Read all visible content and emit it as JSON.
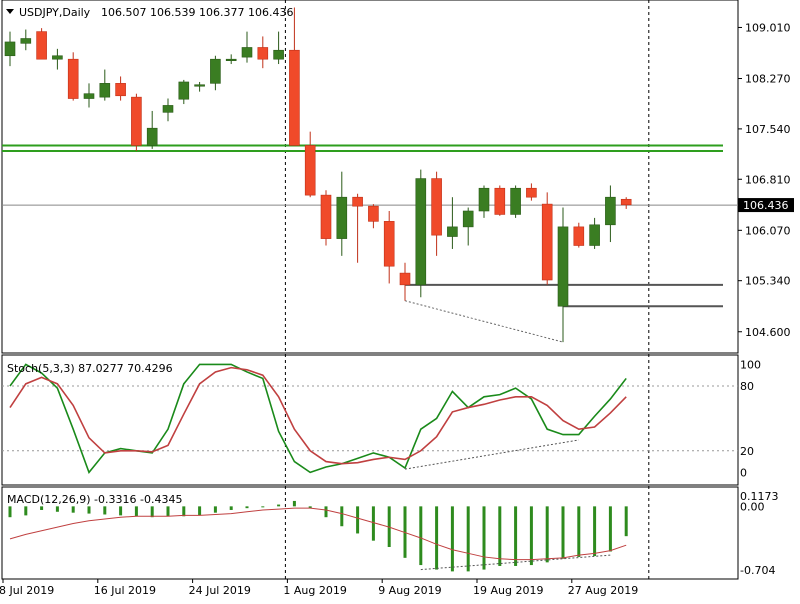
{
  "header": {
    "symbol": "USDJPY,Daily",
    "ohlc": "106.507 106.539 106.377 106.436",
    "menu_icon": "triangle-down-icon"
  },
  "colors": {
    "bull": "#3a7d22",
    "bear": "#f04a2a",
    "support": "#2e9e1e",
    "level": "#555555",
    "stoch_main": "#1a8a1a",
    "stoch_signal": "#c04040",
    "macd_hist": "#2e8b1e",
    "macd_signal": "#c04040"
  },
  "chart_data": [
    {
      "type": "candlestick",
      "title": "USDJPY,Daily",
      "price_axis_ticks": [
        "109.010",
        "108.270",
        "107.540",
        "106.810",
        "106.070",
        "105.340",
        "104.600"
      ],
      "current_price_label": "106.436",
      "current_price": 106.436,
      "ylim": [
        104.35,
        109.35
      ],
      "x_labels": [
        {
          "index": 0,
          "label": "8 Jul 2019"
        },
        {
          "index": 6,
          "label": "16 Jul 2019"
        },
        {
          "index": 12,
          "label": "24 Jul 2019"
        },
        {
          "index": 18,
          "label": "1 Aug 2019"
        },
        {
          "index": 24,
          "label": "9 Aug 2019"
        },
        {
          "index": 30,
          "label": "19 Aug 2019"
        },
        {
          "index": 36,
          "label": "27 Aug 2019"
        }
      ],
      "candles": [
        {
          "o": 108.6,
          "h": 108.95,
          "l": 108.45,
          "c": 108.8
        },
        {
          "o": 108.78,
          "h": 108.98,
          "l": 108.68,
          "c": 108.85
        },
        {
          "o": 108.95,
          "h": 109.0,
          "l": 108.55,
          "c": 108.55
        },
        {
          "o": 108.55,
          "h": 108.7,
          "l": 108.4,
          "c": 108.6
        },
        {
          "o": 108.55,
          "h": 108.65,
          "l": 107.95,
          "c": 107.98
        },
        {
          "o": 107.98,
          "h": 108.2,
          "l": 107.85,
          "c": 108.05
        },
        {
          "o": 108.0,
          "h": 108.4,
          "l": 107.95,
          "c": 108.2
        },
        {
          "o": 108.2,
          "h": 108.3,
          "l": 107.95,
          "c": 108.02
        },
        {
          "o": 108.0,
          "h": 108.05,
          "l": 107.22,
          "c": 107.3
        },
        {
          "o": 107.3,
          "h": 107.8,
          "l": 107.25,
          "c": 107.55
        },
        {
          "o": 107.78,
          "h": 107.98,
          "l": 107.65,
          "c": 107.88
        },
        {
          "o": 107.97,
          "h": 108.25,
          "l": 107.9,
          "c": 108.22
        },
        {
          "o": 108.18,
          "h": 108.22,
          "l": 108.08,
          "c": 108.18
        },
        {
          "o": 108.2,
          "h": 108.6,
          "l": 108.1,
          "c": 108.55
        },
        {
          "o": 108.55,
          "h": 108.62,
          "l": 108.48,
          "c": 108.55
        },
        {
          "o": 108.58,
          "h": 108.95,
          "l": 108.5,
          "c": 108.72
        },
        {
          "o": 108.72,
          "h": 108.88,
          "l": 108.42,
          "c": 108.55
        },
        {
          "o": 108.55,
          "h": 108.95,
          "l": 108.48,
          "c": 108.68
        },
        {
          "o": 108.68,
          "h": 109.3,
          "l": 107.3,
          "c": 107.3
        },
        {
          "o": 107.3,
          "h": 107.5,
          "l": 106.55,
          "c": 106.58
        },
        {
          "o": 106.58,
          "h": 106.65,
          "l": 105.85,
          "c": 105.95
        },
        {
          "o": 105.95,
          "h": 106.92,
          "l": 105.7,
          "c": 106.55
        },
        {
          "o": 106.55,
          "h": 106.6,
          "l": 105.6,
          "c": 106.42
        },
        {
          "o": 106.42,
          "h": 106.45,
          "l": 106.1,
          "c": 106.2
        },
        {
          "o": 106.2,
          "h": 106.35,
          "l": 105.3,
          "c": 105.55
        },
        {
          "o": 105.45,
          "h": 105.6,
          "l": 105.05,
          "c": 105.28
        },
        {
          "o": 105.28,
          "h": 106.95,
          "l": 105.1,
          "c": 106.82
        },
        {
          "o": 106.82,
          "h": 106.92,
          "l": 105.7,
          "c": 106.0
        },
        {
          "o": 105.98,
          "h": 106.55,
          "l": 105.8,
          "c": 106.12
        },
        {
          "o": 106.12,
          "h": 106.4,
          "l": 105.85,
          "c": 106.35
        },
        {
          "o": 106.35,
          "h": 106.72,
          "l": 106.25,
          "c": 106.68
        },
        {
          "o": 106.68,
          "h": 106.72,
          "l": 106.28,
          "c": 106.3
        },
        {
          "o": 106.3,
          "h": 106.72,
          "l": 106.25,
          "c": 106.68
        },
        {
          "o": 106.68,
          "h": 106.75,
          "l": 106.5,
          "c": 106.55
        },
        {
          "o": 106.45,
          "h": 106.62,
          "l": 105.28,
          "c": 105.35
        },
        {
          "o": 104.97,
          "h": 106.4,
          "l": 104.45,
          "c": 106.12
        },
        {
          "o": 106.12,
          "h": 106.18,
          "l": 105.82,
          "c": 105.85
        },
        {
          "o": 105.85,
          "h": 106.25,
          "l": 105.8,
          "c": 106.15
        },
        {
          "o": 106.15,
          "h": 106.72,
          "l": 105.9,
          "c": 106.55
        },
        {
          "o": 106.52,
          "h": 106.55,
          "l": 106.38,
          "c": 106.44
        }
      ],
      "support_lines": [
        {
          "price": 107.3,
          "from_index": 0
        },
        {
          "price": 107.22,
          "from_index": 0
        }
      ],
      "level_lines": [
        {
          "price": 105.28,
          "from_index": 25,
          "to_index": 39
        },
        {
          "price": 104.97,
          "from_index": 35,
          "to_index": 39
        }
      ],
      "trend_line": {
        "from_index": 25,
        "from_price": 105.05,
        "to_index": 35,
        "to_price": 104.45
      }
    },
    {
      "type": "line",
      "title": "Stoch(5,3,3) 87.0277 70.4296",
      "ticks": [
        "100",
        "80",
        "20",
        "0"
      ],
      "ylim": [
        -8,
        105
      ],
      "levels": [
        80,
        20
      ],
      "series": [
        {
          "name": "main",
          "values": [
            80,
            100,
            92,
            78,
            40,
            0,
            18,
            22,
            20,
            18,
            40,
            82,
            100,
            100,
            100,
            93,
            87,
            38,
            10,
            0,
            5,
            8,
            13,
            18,
            14,
            4,
            40,
            50,
            75,
            60,
            70,
            72,
            78,
            68,
            40,
            35,
            35,
            52,
            68,
            87
          ]
        },
        {
          "name": "signal",
          "values": [
            60,
            82,
            88,
            82,
            62,
            32,
            18,
            20,
            20,
            19,
            25,
            54,
            82,
            93,
            97,
            95,
            90,
            70,
            40,
            20,
            10,
            8,
            9,
            12,
            14,
            12,
            20,
            33,
            56,
            60,
            63,
            67,
            70,
            70,
            62,
            48,
            40,
            42,
            55,
            70
          ]
        }
      ]
    },
    {
      "type": "bar",
      "title": "MACD(12,26,9) -0.3316 -0.4345",
      "ticks": [
        "0.1173",
        "0.00",
        "-0.704"
      ],
      "ylim": [
        -0.76,
        0.17
      ],
      "histogram": [
        -0.12,
        -0.1,
        -0.04,
        -0.06,
        -0.07,
        -0.08,
        -0.09,
        -0.1,
        -0.11,
        -0.12,
        -0.11,
        -0.11,
        -0.1,
        -0.07,
        -0.04,
        -0.02,
        -0.01,
        0.02,
        0.06,
        -0.02,
        -0.12,
        -0.22,
        -0.3,
        -0.38,
        -0.45,
        -0.57,
        -0.65,
        -0.7,
        -0.72,
        -0.72,
        -0.7,
        -0.66,
        -0.66,
        -0.65,
        -0.62,
        -0.58,
        -0.56,
        -0.55,
        -0.5,
        -0.33
      ],
      "signal": [
        -0.36,
        -0.31,
        -0.27,
        -0.23,
        -0.19,
        -0.16,
        -0.14,
        -0.12,
        -0.11,
        -0.11,
        -0.11,
        -0.1,
        -0.1,
        -0.09,
        -0.08,
        -0.06,
        -0.04,
        -0.03,
        -0.02,
        -0.02,
        -0.04,
        -0.08,
        -0.13,
        -0.18,
        -0.23,
        -0.29,
        -0.35,
        -0.42,
        -0.48,
        -0.52,
        -0.56,
        -0.58,
        -0.59,
        -0.59,
        -0.58,
        -0.57,
        -0.54,
        -0.52,
        -0.49,
        -0.43
      ],
      "trend_line": {
        "from_index": 26,
        "from_value": -0.7,
        "to_index": 38,
        "to_value": -0.54
      }
    }
  ]
}
